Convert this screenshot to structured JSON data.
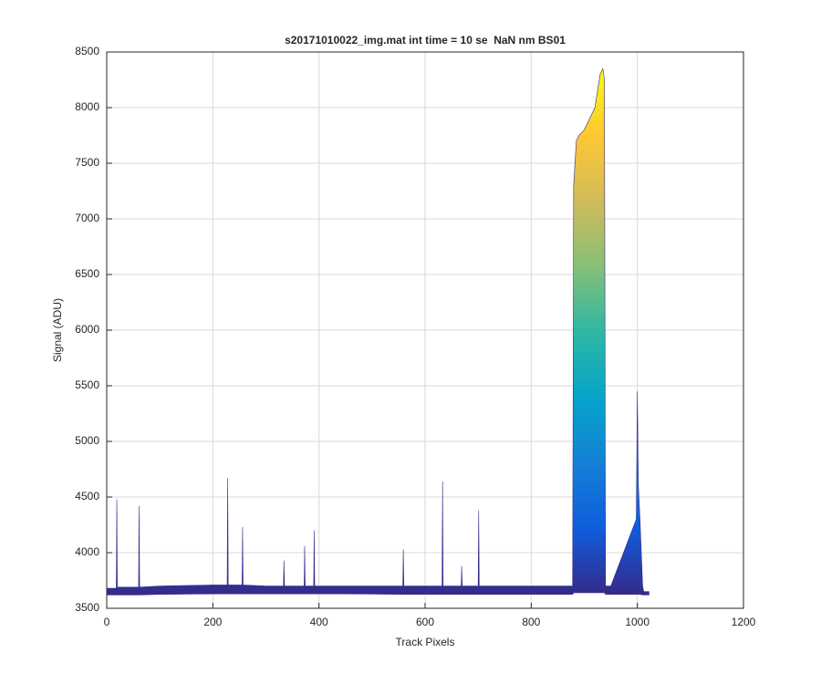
{
  "chart_data": {
    "type": "area-band",
    "title": "s20171010022_img.mat int time = 10 se  NaN nm BS01",
    "x_label": "Track Pixels",
    "y_label": "Signal (ADU)",
    "x": [
      0,
      18,
      19,
      20,
      60,
      61,
      62,
      100,
      200,
      227,
      228,
      229,
      255,
      256,
      257,
      300,
      333,
      334,
      335,
      372,
      373,
      374,
      390,
      391,
      392,
      450,
      558,
      559,
      560,
      632,
      633,
      634,
      668,
      669,
      670,
      700,
      701,
      702,
      730,
      800,
      820,
      878,
      880,
      885,
      890,
      900,
      910,
      920,
      930,
      935,
      938,
      940,
      950,
      998,
      1000,
      1002,
      1005,
      1010,
      1012,
      1022
    ],
    "series": [
      {
        "values": [
          3680,
          3680,
          4480,
          3690,
          3690,
          4420,
          3690,
          3700,
          3710,
          3710,
          4670,
          3710,
          3710,
          4230,
          3710,
          3700,
          3700,
          3930,
          3700,
          3700,
          4060,
          3700,
          3700,
          4200,
          3700,
          3700,
          3700,
          4030,
          3700,
          3700,
          4640,
          3700,
          3700,
          3880,
          3700,
          3700,
          4380,
          3700,
          3700,
          3700,
          3700,
          3700,
          7300,
          7700,
          7750,
          7800,
          7900,
          8000,
          8300,
          8350,
          8250,
          3700,
          3700,
          4300,
          5450,
          4600,
          4300,
          3700,
          3650,
          3650
        ]
      },
      {
        "values": [
          3620,
          3620,
          3620,
          3620,
          3620,
          3620,
          3620,
          3625,
          3630,
          3630,
          3630,
          3630,
          3630,
          3630,
          3630,
          3630,
          3630,
          3630,
          3630,
          3630,
          3630,
          3630,
          3630,
          3630,
          3630,
          3630,
          3625,
          3625,
          3625,
          3625,
          3625,
          3625,
          3625,
          3625,
          3625,
          3625,
          3625,
          3625,
          3625,
          3625,
          3625,
          3625,
          3640,
          3640,
          3640,
          3640,
          3640,
          3640,
          3640,
          3640,
          3640,
          3625,
          3625,
          3625,
          3625,
          3625,
          3625,
          3620,
          3620,
          3620
        ]
      }
    ],
    "colormap": [
      "#352a87",
      "#0f5cdd",
      "#1481d6",
      "#06a4ca",
      "#2eb7a4",
      "#87bf77",
      "#d1bb59",
      "#fec832",
      "#f9fb0e"
    ],
    "xlim": [
      0,
      1200
    ],
    "xticks": [
      0,
      200,
      400,
      600,
      800,
      1000,
      1200
    ],
    "ylim": [
      3500,
      8500
    ],
    "yticks": [
      3500,
      4000,
      4500,
      5000,
      5500,
      6000,
      6500,
      7000,
      7500,
      8000,
      8500
    ],
    "grid": true
  }
}
